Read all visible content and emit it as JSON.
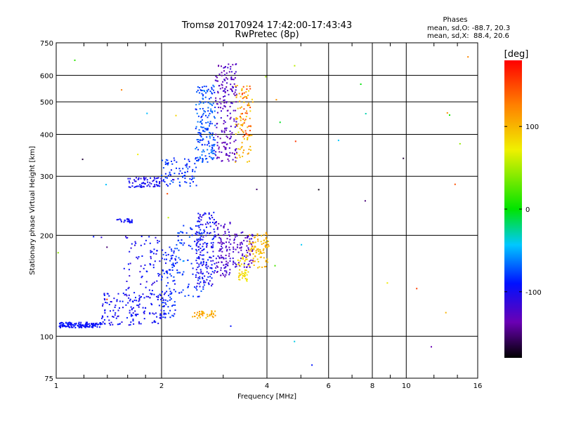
{
  "chart_data": {
    "type": "scatter",
    "title": "Tromsø 20170924 17:42:00-17:43:43",
    "subtitle": "RwPretec (8p)",
    "xlabel": "Frequency [MHz]",
    "ylabel": "Stationary phase Virtual Height [km]",
    "x_scale": "log",
    "y_scale": "log",
    "xlim": [
      1,
      16
    ],
    "ylim": [
      75,
      750
    ],
    "x_ticks": [
      1,
      2,
      4,
      6,
      8,
      10,
      16
    ],
    "x_tick_labels": [
      "1",
      "2",
      "4",
      "6",
      "8",
      "10",
      "16"
    ],
    "x_minor_ticks": [
      1.2,
      1.4,
      1.6,
      1.8,
      3,
      5,
      7,
      9,
      12,
      14
    ],
    "y_ticks": [
      75,
      100,
      200,
      300,
      400,
      500,
      600,
      750
    ],
    "y_tick_labels": [
      "75",
      "100",
      "200",
      "300",
      "400",
      "500",
      "600",
      "750"
    ],
    "grid": true,
    "info": {
      "heading": "Phases",
      "line_o": "mean, sd,O: -88.7, 20.3",
      "line_x": "mean, sd,X:  88.4, 20.6"
    },
    "colorbar": {
      "label": "[deg]",
      "range": [
        -180,
        180
      ],
      "ticks": [
        -100,
        0,
        100
      ],
      "tick_labels": [
        "-100",
        "0",
        "100"
      ]
    },
    "clusters": [
      {
        "f": [
          1.02,
          1.35
        ],
        "h": [
          106,
          110
        ],
        "n": 130,
        "phase": [
          -100,
          -85
        ]
      },
      {
        "f": [
          1.35,
          2.0
        ],
        "h": [
          108,
          135
        ],
        "n": 140,
        "phase": [
          -110,
          -85
        ]
      },
      {
        "f": [
          1.55,
          1.98
        ],
        "h": [
          125,
          200
        ],
        "n": 80,
        "phase": [
          -115,
          -85
        ]
      },
      {
        "f": [
          2.0,
          2.2
        ],
        "h": [
          113,
          185
        ],
        "n": 100,
        "phase": [
          -100,
          -75
        ]
      },
      {
        "f": [
          2.2,
          2.65
        ],
        "h": [
          130,
          215
        ],
        "n": 90,
        "phase": [
          -95,
          -70
        ]
      },
      {
        "f": [
          2.5,
          2.85
        ],
        "h": [
          140,
          235
        ],
        "n": 160,
        "phase": [
          -115,
          -85
        ]
      },
      {
        "f": [
          2.85,
          3.15
        ],
        "h": [
          150,
          220
        ],
        "n": 100,
        "phase": [
          -135,
          -110
        ]
      },
      {
        "f": [
          3.2,
          3.65
        ],
        "h": [
          160,
          205
        ],
        "n": 80,
        "phase": [
          -135,
          -110
        ]
      },
      {
        "f": [
          3.3,
          3.55
        ],
        "h": [
          145,
          175
        ],
        "n": 45,
        "phase": [
          70,
          95
        ]
      },
      {
        "f": [
          3.55,
          4.05
        ],
        "h": [
          160,
          205
        ],
        "n": 90,
        "phase": [
          85,
          115
        ]
      },
      {
        "f": [
          2.45,
          2.85
        ],
        "h": [
          113,
          119
        ],
        "n": 40,
        "phase": [
          90,
          120
        ]
      },
      {
        "f": [
          1.48,
          1.65
        ],
        "h": [
          218,
          224
        ],
        "n": 25,
        "phase": [
          -100,
          -90
        ]
      },
      {
        "f": [
          1.6,
          2.0
        ],
        "h": [
          278,
          298
        ],
        "n": 70,
        "phase": [
          -110,
          -90
        ]
      },
      {
        "f": [
          2.0,
          2.55
        ],
        "h": [
          280,
          340
        ],
        "n": 80,
        "phase": [
          -95,
          -70
        ]
      },
      {
        "f": [
          2.5,
          2.85
        ],
        "h": [
          330,
          560
        ],
        "n": 180,
        "phase": [
          -90,
          -60
        ]
      },
      {
        "f": [
          2.85,
          3.28
        ],
        "h": [
          330,
          650
        ],
        "n": 190,
        "phase": [
          -140,
          -115
        ]
      },
      {
        "f": [
          3.25,
          3.65
        ],
        "h": [
          330,
          560
        ],
        "n": 80,
        "phase": [
          85,
          115
        ]
      },
      {
        "f": [
          3.35,
          3.6
        ],
        "h": [
          390,
          560
        ],
        "n": 30,
        "phase": [
          135,
          160
        ]
      },
      {
        "f": [
          1.0,
          16.0
        ],
        "h": [
          76,
          700
        ],
        "n": 45,
        "phase": [
          -180,
          180
        ]
      }
    ]
  }
}
